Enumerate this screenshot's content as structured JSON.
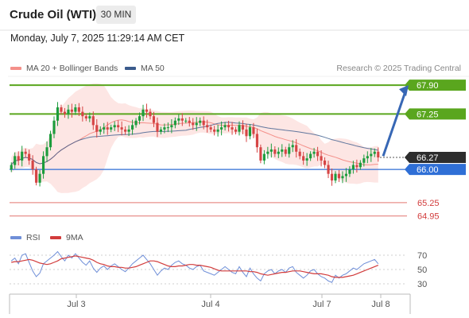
{
  "header": {
    "instrument": "Crude Oil (WTI)",
    "timeframe": "30 MIN",
    "datetime": "Monday, July 7, 2025 11:29:14 AM CET"
  },
  "legend": {
    "bb": {
      "label": "MA 20 + Bollinger Bands",
      "color": "#f4908a"
    },
    "ma50": {
      "label": "MA 50",
      "color": "#3b5b8c"
    }
  },
  "source": "Research © 2025 Trading Central",
  "colors": {
    "up": "#1c9c3c",
    "down": "#d64545",
    "resistance": "#5aa61e",
    "support_red": "#e8908c",
    "pivot_blue": "#2f6fd6",
    "bb_fill": "#fde3e1",
    "arrow": "#3767b5",
    "rsi": "#6f8fd8",
    "rsi_ma": "#d23c3c"
  },
  "chart_data": [
    {
      "type": "candlestick",
      "ylim": [
        64.8,
        68.1
      ],
      "x_labels": [
        "Jul 3",
        "Jul 4",
        "Jul 7",
        "Jul 8"
      ],
      "current_price": 66.27,
      "levels": [
        {
          "value": 67.9,
          "label": "67.90",
          "kind": "resistance"
        },
        {
          "value": 67.25,
          "label": "67.25",
          "kind": "resistance"
        },
        {
          "value": 66.0,
          "label": "66.00",
          "kind": "pivot"
        },
        {
          "value": 65.25,
          "label": "65.25",
          "kind": "support"
        },
        {
          "value": 64.95,
          "label": "64.95",
          "kind": "support"
        }
      ],
      "arrow": {
        "from": 66.3,
        "to": 67.9
      },
      "close": [
        66.1,
        66.3,
        66.2,
        66.4,
        66.35,
        66.2,
        66.0,
        65.7,
        65.9,
        66.3,
        66.5,
        66.8,
        67.1,
        67.4,
        67.3,
        67.25,
        67.35,
        67.3,
        67.4,
        67.3,
        67.2,
        67.15,
        67.2,
        67.0,
        66.85,
        66.9,
        66.95,
        66.9,
        66.95,
        67.0,
        66.95,
        66.9,
        66.85,
        66.9,
        67.0,
        67.1,
        67.2,
        67.35,
        67.3,
        67.2,
        67.05,
        66.85,
        66.9,
        66.95,
        66.95,
        67.0,
        67.1,
        67.15,
        67.1,
        67.1,
        67.05,
        67.0,
        67.05,
        67.1,
        67.0,
        66.95,
        66.9,
        66.85,
        66.9,
        66.95,
        67.0,
        66.95,
        66.9,
        66.85,
        67.0,
        66.9,
        66.75,
        66.95,
        66.8,
        66.5,
        66.2,
        66.35,
        66.4,
        66.45,
        66.35,
        66.4,
        66.45,
        66.35,
        66.5,
        66.55,
        66.4,
        66.3,
        66.2,
        66.25,
        66.35,
        66.4,
        66.3,
        66.2,
        66.1,
        65.9,
        65.75,
        65.9,
        65.8,
        65.85,
        65.9,
        66.0,
        66.1,
        66.05,
        66.15,
        66.25,
        66.3,
        66.35,
        66.4,
        66.27
      ],
      "rsi": {
        "ylim": [
          20,
          80
        ],
        "ticks": [
          70,
          50,
          30
        ],
        "legend": [
          "RSI",
          "9MA"
        ],
        "rsi": [
          62,
          66,
          58,
          70,
          72,
          60,
          48,
          40,
          45,
          58,
          62,
          66,
          70,
          75,
          68,
          62,
          70,
          66,
          72,
          66,
          60,
          56,
          62,
          52,
          46,
          52,
          55,
          50,
          55,
          58,
          54,
          50,
          47,
          52,
          58,
          62,
          66,
          70,
          64,
          58,
          50,
          42,
          48,
          52,
          50,
          56,
          60,
          62,
          58,
          56,
          52,
          50,
          54,
          56,
          48,
          46,
          44,
          42,
          46,
          50,
          54,
          50,
          46,
          44,
          54,
          46,
          40,
          52,
          44,
          38,
          34,
          44,
          48,
          50,
          44,
          48,
          50,
          46,
          52,
          54,
          46,
          42,
          38,
          42,
          48,
          50,
          44,
          40,
          38,
          34,
          32,
          42,
          38,
          42,
          44,
          48,
          52,
          50,
          54,
          58,
          60,
          62,
          64,
          58
        ],
        "ma": [
          60,
          61,
          61,
          62,
          63,
          64,
          63,
          61,
          59,
          58,
          57,
          58,
          60,
          62,
          65,
          66,
          67,
          68,
          69,
          68,
          67,
          66,
          65,
          63,
          60,
          58,
          57,
          55,
          54,
          54,
          53,
          53,
          52,
          52,
          53,
          54,
          56,
          58,
          60,
          62,
          62,
          61,
          59,
          57,
          55,
          54,
          54,
          55,
          55,
          56,
          57,
          57,
          56,
          56,
          55,
          54,
          53,
          51,
          49,
          48,
          48,
          48,
          48,
          48,
          48,
          48,
          48,
          47,
          47,
          46,
          44,
          43,
          42,
          43,
          44,
          45,
          46,
          46,
          47,
          48,
          48,
          48,
          47,
          46,
          45,
          44,
          44,
          44,
          43,
          42,
          40,
          39,
          39,
          39,
          40,
          41,
          42,
          44,
          46,
          48,
          50,
          52,
          54,
          56
        ]
      }
    }
  ]
}
